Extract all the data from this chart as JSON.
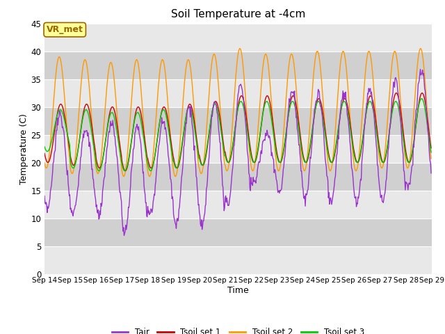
{
  "title": "Soil Temperature at -4cm",
  "xlabel": "Time",
  "ylabel": "Temperature (C)",
  "ylim": [
    0,
    45
  ],
  "yticks": [
    0,
    5,
    10,
    15,
    20,
    25,
    30,
    35,
    40,
    45
  ],
  "x_labels": [
    "Sep 14",
    "Sep 15",
    "Sep 16",
    "Sep 17",
    "Sep 18",
    "Sep 19",
    "Sep 20",
    "Sep 21",
    "Sep 22",
    "Sep 23",
    "Sep 24",
    "Sep 25",
    "Sep 26",
    "Sep 27",
    "Sep 28",
    "Sep 29"
  ],
  "n_days": 15,
  "color_tair": "#9933cc",
  "color_tsoil1": "#cc0000",
  "color_tsoil2": "#ff9900",
  "color_tsoil3": "#00cc00",
  "annotation_text": "VR_met",
  "annotation_bg": "#ffff99",
  "annotation_border": "#996600",
  "bg_light": "#e8e8e8",
  "bg_dark": "#d0d0d0",
  "grid_color": "#ffffff",
  "tair_mins": [
    11.5,
    11.0,
    10.5,
    7.5,
    10.5,
    9.0,
    8.5,
    12.5,
    16.5,
    14.5,
    13.5,
    13.0,
    13.0,
    13.0,
    15.5
  ],
  "tair_maxs": [
    28.5,
    26.0,
    27.0,
    26.5,
    27.5,
    30.0,
    31.0,
    34.0,
    25.0,
    33.0,
    32.5,
    32.5,
    33.5,
    35.0,
    36.5
  ],
  "tsoil1_mins": [
    20.0,
    19.5,
    19.0,
    18.5,
    19.0,
    19.0,
    19.5,
    20.0,
    20.0,
    20.0,
    20.0,
    20.0,
    20.0,
    20.0,
    20.0
  ],
  "tsoil1_maxs": [
    30.5,
    30.5,
    30.0,
    30.0,
    30.0,
    30.5,
    31.0,
    32.0,
    32.0,
    32.0,
    31.5,
    31.5,
    32.0,
    32.5,
    32.5
  ],
  "tsoil2_mins": [
    19.0,
    18.0,
    18.0,
    17.5,
    17.5,
    17.5,
    18.0,
    18.5,
    18.5,
    18.5,
    18.5,
    18.5,
    18.5,
    19.0,
    19.0
  ],
  "tsoil2_maxs": [
    39.0,
    38.5,
    38.0,
    38.5,
    38.5,
    38.5,
    39.5,
    40.5,
    39.5,
    39.5,
    40.0,
    40.0,
    40.0,
    40.0,
    40.5
  ],
  "tsoil3_mins": [
    22.0,
    19.0,
    18.5,
    18.5,
    18.5,
    19.0,
    19.5,
    20.0,
    20.0,
    20.0,
    20.0,
    20.0,
    20.0,
    20.0,
    20.0
  ],
  "tsoil3_maxs": [
    29.5,
    29.5,
    29.0,
    29.0,
    29.5,
    30.0,
    30.5,
    31.0,
    31.0,
    31.0,
    31.0,
    31.0,
    31.0,
    31.0,
    31.5
  ],
  "tair_phase": 0.6,
  "tsoil1_phase": 0.63,
  "tsoil2_phase": 0.57,
  "tsoil3_phase": 0.61
}
